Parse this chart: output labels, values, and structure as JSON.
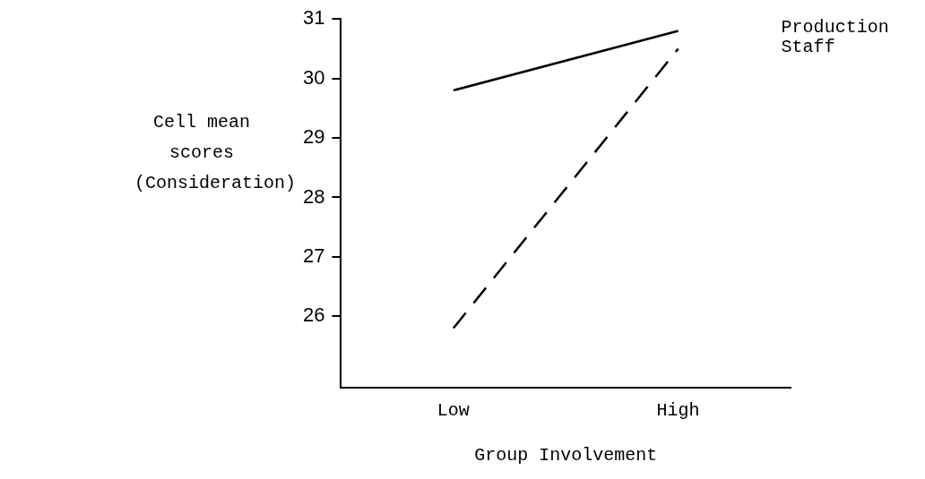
{
  "chart_data": {
    "type": "line",
    "xlabel": "Group Involvement",
    "ylabel": "Cell mean scores (Consideration)",
    "categories": [
      "Low",
      "High"
    ],
    "series": [
      {
        "name": "Production Staff",
        "color": "#000000",
        "line_style": "solid",
        "values": [
          29.8,
          30.8
        ]
      },
      {
        "color": "#000000",
        "line_style": "dashed",
        "values": [
          25.8,
          30.5
        ]
      }
    ],
    "ylim": [
      24.8,
      31
    ],
    "yticks": [
      26,
      27,
      28,
      29,
      30,
      31
    ],
    "grid": false,
    "legend": false,
    "marker": "none"
  }
}
